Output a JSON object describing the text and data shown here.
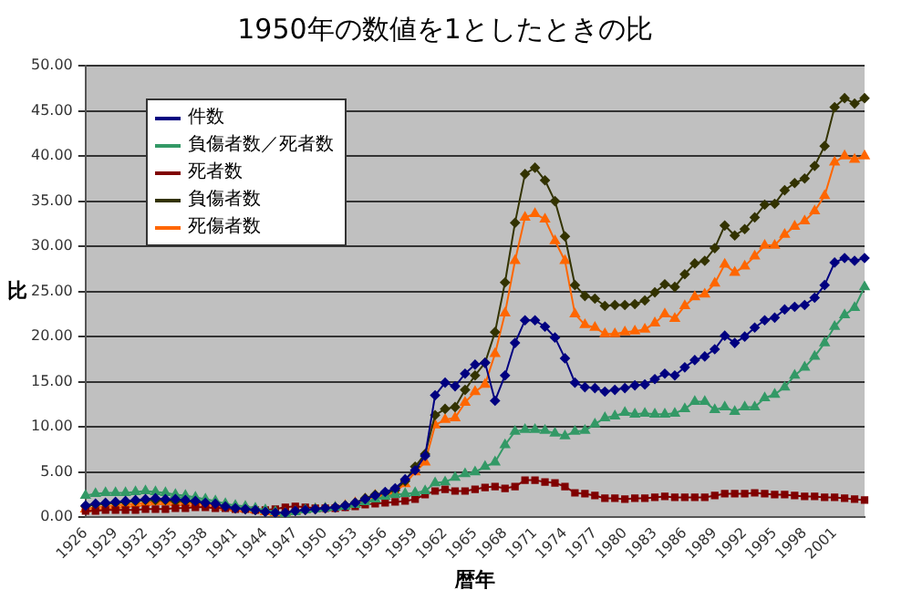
{
  "chart_data": {
    "type": "line",
    "title": "1950年の数値を1としたときの比",
    "xlabel": "暦年",
    "ylabel": "比",
    "categories": [
      "1926",
      null,
      null,
      "1929",
      null,
      null,
      "1932",
      null,
      null,
      "1935",
      null,
      null,
      "1938",
      null,
      null,
      "1941",
      null,
      null,
      "1944",
      null,
      null,
      "1947",
      null,
      null,
      "1950",
      null,
      null,
      "1953",
      null,
      null,
      "1956",
      null,
      null,
      "1959",
      null,
      null,
      "1962",
      null,
      null,
      "1965",
      null,
      null,
      "1968",
      null,
      null,
      "1971",
      null,
      null,
      "1974",
      null,
      null,
      "1977",
      null,
      null,
      "1980",
      null,
      null,
      "1983",
      null,
      null,
      "1986",
      null,
      null,
      "1989",
      null,
      null,
      "1992",
      null,
      null,
      "1995",
      null,
      null,
      "1998",
      null,
      null,
      "2001",
      null,
      null,
      null
    ],
    "ylim": [
      0,
      50
    ],
    "yticks": [
      {
        "value": 0,
        "label": "0.00"
      },
      {
        "value": 5,
        "label": "5.00"
      },
      {
        "value": 10,
        "label": "10.00"
      },
      {
        "value": 15,
        "label": "15.00"
      },
      {
        "value": 20,
        "label": "20.00"
      },
      {
        "value": 25,
        "label": "25.00"
      },
      {
        "value": 30,
        "label": "30.00"
      },
      {
        "value": 35,
        "label": "35.00"
      },
      {
        "value": 40,
        "label": "40.00"
      },
      {
        "value": 45,
        "label": "45.00"
      },
      {
        "value": 50,
        "label": "50.00"
      }
    ],
    "grid": "y",
    "legend": "top left",
    "line_style": "solid",
    "series": [
      {
        "name": "件数",
        "color": "#000080",
        "marker": "diamond",
        "values": [
          1.3,
          1.5,
          1.6,
          1.7,
          1.8,
          1.9,
          2.0,
          2.1,
          2.0,
          2.0,
          1.9,
          1.8,
          1.6,
          1.5,
          1.2,
          1.0,
          0.9,
          0.8,
          0.6,
          0.5,
          0.5,
          0.7,
          0.8,
          0.9,
          1.0,
          1.1,
          1.3,
          1.6,
          2.0,
          2.4,
          2.8,
          3.2,
          4.2,
          5.2,
          6.8,
          13.5,
          14.9,
          14.5,
          15.9,
          16.9,
          17.1,
          12.9,
          15.7,
          19.3,
          21.8,
          21.8,
          21.1,
          19.9,
          17.6,
          14.9,
          14.4,
          14.3,
          13.9,
          14.1,
          14.3,
          14.6,
          14.7,
          15.3,
          15.9,
          15.7,
          16.6,
          17.4,
          17.8,
          18.6,
          20.1,
          19.3,
          20.0,
          21.0,
          21.8,
          22.1,
          23.0,
          23.3,
          23.5,
          24.3,
          25.7,
          28.2,
          28.7,
          28.4,
          28.7
        ]
      },
      {
        "name": "負傷者数／死者数",
        "color": "#339966",
        "marker": "triangle",
        "values": [
          2.4,
          2.6,
          2.7,
          2.7,
          2.7,
          2.8,
          2.9,
          2.8,
          2.7,
          2.5,
          2.4,
          2.2,
          2.0,
          1.8,
          1.5,
          1.3,
          1.2,
          1.0,
          0.8,
          0.6,
          0.4,
          0.6,
          0.8,
          0.9,
          1.0,
          1.1,
          1.2,
          1.4,
          1.7,
          2.0,
          2.3,
          2.5,
          2.6,
          2.7,
          2.9,
          3.8,
          3.9,
          4.4,
          4.8,
          5.0,
          5.6,
          6.1,
          8.0,
          9.5,
          9.7,
          9.7,
          9.6,
          9.3,
          9.0,
          9.5,
          9.6,
          10.3,
          11.0,
          11.2,
          11.6,
          11.4,
          11.5,
          11.4,
          11.4,
          11.5,
          12.0,
          12.8,
          12.8,
          11.9,
          12.2,
          11.7,
          12.2,
          12.2,
          13.2,
          13.6,
          14.4,
          15.7,
          16.6,
          17.8,
          19.3,
          21.1,
          22.4,
          23.2,
          25.5
        ]
      },
      {
        "name": "死者数",
        "color": "#800000",
        "marker": "square",
        "values": [
          0.7,
          0.7,
          0.8,
          0.8,
          0.8,
          0.8,
          0.9,
          0.9,
          0.9,
          1.0,
          1.0,
          1.1,
          1.1,
          1.0,
          1.0,
          0.9,
          0.9,
          0.8,
          0.8,
          0.9,
          1.1,
          1.2,
          1.1,
          1.0,
          1.0,
          1.0,
          1.1,
          1.2,
          1.4,
          1.5,
          1.6,
          1.7,
          1.8,
          2.0,
          2.5,
          2.9,
          3.1,
          2.9,
          2.9,
          3.1,
          3.3,
          3.4,
          3.2,
          3.4,
          4.1,
          4.1,
          3.9,
          3.8,
          3.4,
          2.7,
          2.6,
          2.4,
          2.1,
          2.1,
          2.0,
          2.1,
          2.1,
          2.2,
          2.3,
          2.2,
          2.2,
          2.2,
          2.2,
          2.4,
          2.6,
          2.6,
          2.6,
          2.7,
          2.6,
          2.5,
          2.5,
          2.4,
          2.3,
          2.3,
          2.2,
          2.2,
          2.1,
          2.0,
          1.9
        ]
      },
      {
        "name": "負傷者数",
        "color": "#333300",
        "marker": "diamond",
        "values": [
          1.2,
          1.4,
          1.5,
          1.6,
          1.7,
          1.8,
          1.9,
          1.9,
          1.9,
          1.8,
          1.8,
          1.7,
          1.6,
          1.5,
          1.2,
          1.0,
          0.9,
          0.8,
          0.6,
          0.5,
          0.5,
          0.7,
          0.8,
          0.9,
          1.0,
          1.1,
          1.3,
          1.6,
          2.1,
          2.5,
          2.7,
          3.0,
          4.0,
          5.6,
          7.0,
          11.3,
          12.0,
          12.2,
          14.1,
          15.7,
          17.1,
          20.5,
          26.0,
          32.6,
          38.0,
          38.7,
          37.3,
          35.0,
          31.1,
          25.7,
          24.5,
          24.2,
          23.4,
          23.5,
          23.5,
          23.6,
          24.0,
          24.9,
          25.8,
          25.5,
          26.9,
          28.1,
          28.4,
          29.8,
          32.3,
          31.2,
          31.9,
          33.2,
          34.6,
          34.7,
          36.2,
          37.0,
          37.5,
          38.9,
          41.1,
          45.4,
          46.4,
          45.8,
          46.4
        ]
      },
      {
        "name": "死傷者数",
        "color": "#ff6600",
        "marker": "triangle",
        "values": [
          0.9,
          1.1,
          1.2,
          1.3,
          1.4,
          1.5,
          1.6,
          1.7,
          1.7,
          1.6,
          1.6,
          1.5,
          1.4,
          1.3,
          1.1,
          1.0,
          0.9,
          0.8,
          0.6,
          0.5,
          0.5,
          0.7,
          0.8,
          0.9,
          1.0,
          1.1,
          1.3,
          1.6,
          2.0,
          2.4,
          2.6,
          2.8,
          3.7,
          5.0,
          6.1,
          10.2,
          10.8,
          11.0,
          12.7,
          13.9,
          14.7,
          18.1,
          22.6,
          28.4,
          33.2,
          33.6,
          33.0,
          30.6,
          28.4,
          22.5,
          21.3,
          21.0,
          20.3,
          20.3,
          20.5,
          20.6,
          20.8,
          21.5,
          22.5,
          22.0,
          23.4,
          24.4,
          24.7,
          25.9,
          28.0,
          27.1,
          27.8,
          28.9,
          30.1,
          30.1,
          31.3,
          32.2,
          32.8,
          33.9,
          35.6,
          39.3,
          40.0,
          39.6,
          40.0
        ]
      }
    ]
  }
}
